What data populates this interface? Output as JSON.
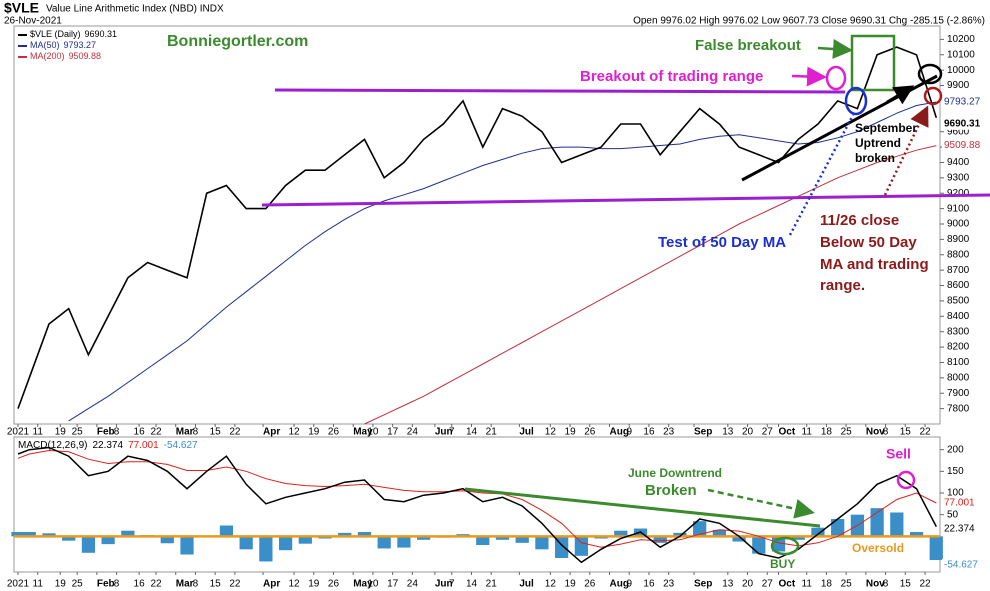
{
  "chart_data": {
    "type": "line",
    "symbol": "$VLE",
    "title": "Value Line Arithmetic Index (NBD) INDX",
    "date_label": "26-Nov-2021",
    "header_quote": "Open 9976.02 High 9976.02 Low 9607.73 Close 9690.31 Chg -285.15 (-2.86%)",
    "x": [
      "2021-01-04",
      "2021-01-08",
      "2021-01-15",
      "2021-01-22",
      "2021-01-29",
      "2021-02-05",
      "2021-02-12",
      "2021-02-19",
      "2021-02-26",
      "2021-03-05",
      "2021-03-12",
      "2021-03-19",
      "2021-03-26",
      "2021-04-02",
      "2021-04-09",
      "2021-04-16",
      "2021-04-23",
      "2021-04-30",
      "2021-05-07",
      "2021-05-14",
      "2021-05-21",
      "2021-05-28",
      "2021-06-04",
      "2021-06-11",
      "2021-06-18",
      "2021-06-25",
      "2021-07-02",
      "2021-07-09",
      "2021-07-16",
      "2021-07-23",
      "2021-07-30",
      "2021-08-06",
      "2021-08-13",
      "2021-08-20",
      "2021-08-27",
      "2021-09-03",
      "2021-09-10",
      "2021-09-17",
      "2021-09-24",
      "2021-10-01",
      "2021-10-08",
      "2021-10-15",
      "2021-10-22",
      "2021-10-29",
      "2021-11-05",
      "2021-11-12",
      "2021-11-19",
      "2021-11-26"
    ],
    "series": [
      {
        "name": "$VLE (Daily)",
        "color": "#000000",
        "values": [
          7800,
          8000,
          8350,
          8450,
          8150,
          8400,
          8650,
          8750,
          8700,
          8650,
          9200,
          9250,
          9100,
          9100,
          9250,
          9350,
          9350,
          9450,
          9550,
          9300,
          9400,
          9550,
          9650,
          9800,
          9500,
          9750,
          9700,
          9600,
          9400,
          9450,
          9500,
          9650,
          9650,
          9450,
          9600,
          9750,
          9650,
          9500,
          9450,
          9400,
          9550,
          9650,
          9800,
          9750,
          10100,
          10150,
          10100,
          9690.31
        ]
      },
      {
        "name": "MA(50)",
        "color": "#1f2f8f",
        "values": [
          null,
          null,
          null,
          7720,
          7800,
          7880,
          7970,
          8060,
          8150,
          8240,
          8350,
          8460,
          8560,
          8660,
          8760,
          8860,
          8950,
          9030,
          9100,
          9150,
          9190,
          9230,
          9280,
          9330,
          9380,
          9420,
          9460,
          9490,
          9500,
          9500,
          9490,
          9490,
          9500,
          9510,
          9520,
          9550,
          9570,
          9580,
          9560,
          9540,
          9520,
          9530,
          9560,
          9600,
          9660,
          9720,
          9770,
          9793.27
        ]
      },
      {
        "name": "MA(200)",
        "color": "#c0303f",
        "values": [
          null,
          null,
          null,
          null,
          null,
          null,
          null,
          null,
          null,
          null,
          null,
          null,
          null,
          null,
          null,
          null,
          null,
          null,
          7700,
          7760,
          7820,
          7880,
          7950,
          8020,
          8090,
          8160,
          8230,
          8300,
          8370,
          8440,
          8510,
          8580,
          8650,
          8720,
          8790,
          8860,
          8930,
          9000,
          9060,
          9120,
          9180,
          9240,
          9300,
          9350,
          9400,
          9440,
          9480,
          9509.88
        ]
      }
    ],
    "ylim": [
      7700,
      10300
    ],
    "yticks": [
      7800,
      7900,
      8000,
      8100,
      8200,
      8300,
      8400,
      8500,
      8600,
      8700,
      8800,
      8900,
      9000,
      9100,
      9200,
      9300,
      9400,
      9500,
      9600,
      9900,
      10000,
      10100,
      10200
    ],
    "xlim": [
      "2021-01-04",
      "2021-11-22"
    ],
    "xticks": [
      {
        "value": "2021-01-04",
        "label": "2021"
      },
      {
        "value": "2021-01-11",
        "label": "11"
      },
      {
        "value": "2021-01-19",
        "label": "19"
      },
      {
        "value": "2021-01-25",
        "label": "25"
      },
      {
        "value": "2021-02-01",
        "label": "Feb"
      },
      {
        "value": "2021-02-08",
        "label": "8"
      },
      {
        "value": "2021-02-16",
        "label": "16"
      },
      {
        "value": "2021-02-22",
        "label": "22"
      },
      {
        "value": "2021-03-01",
        "label": "Mar"
      },
      {
        "value": "2021-03-08",
        "label": "8"
      },
      {
        "value": "2021-03-15",
        "label": "15"
      },
      {
        "value": "2021-03-22",
        "label": "22"
      },
      {
        "value": "2021-04-01",
        "label": "Apr"
      },
      {
        "value": "2021-04-12",
        "label": "12"
      },
      {
        "value": "2021-04-19",
        "label": "19"
      },
      {
        "value": "2021-04-26",
        "label": "26"
      },
      {
        "value": "2021-05-03",
        "label": "May"
      },
      {
        "value": "2021-05-10",
        "label": "10"
      },
      {
        "value": "2021-05-17",
        "label": "17"
      },
      {
        "value": "2021-05-24",
        "label": "24"
      },
      {
        "value": "2021-06-01",
        "label": "Jun"
      },
      {
        "value": "2021-06-07",
        "label": "7"
      },
      {
        "value": "2021-06-14",
        "label": "14"
      },
      {
        "value": "2021-06-21",
        "label": "21"
      },
      {
        "value": "2021-07-01",
        "label": "Jul"
      },
      {
        "value": "2021-07-12",
        "label": "12"
      },
      {
        "value": "2021-07-19",
        "label": "19"
      },
      {
        "value": "2021-07-26",
        "label": "26"
      },
      {
        "value": "2021-08-02",
        "label": "Aug"
      },
      {
        "value": "2021-08-09",
        "label": "9"
      },
      {
        "value": "2021-08-16",
        "label": "16"
      },
      {
        "value": "2021-08-23",
        "label": "23"
      },
      {
        "value": "2021-09-01",
        "label": "Sep"
      },
      {
        "value": "2021-09-13",
        "label": "13"
      },
      {
        "value": "2021-09-20",
        "label": "20"
      },
      {
        "value": "2021-09-27",
        "label": "27"
      },
      {
        "value": "2021-10-01",
        "label": "Oct"
      },
      {
        "value": "2021-10-11",
        "label": "11"
      },
      {
        "value": "2021-10-18",
        "label": "18"
      },
      {
        "value": "2021-10-25",
        "label": "25"
      },
      {
        "value": "2021-11-01",
        "label": "Nov"
      },
      {
        "value": "2021-11-08",
        "label": "8"
      },
      {
        "value": "2021-11-15",
        "label": "15"
      },
      {
        "value": "2021-11-22",
        "label": "22"
      }
    ],
    "grid": false,
    "macd": {
      "name": "MACD(12,26,9)",
      "ylim": [
        -80,
        220
      ],
      "yticks": [
        50,
        100,
        150,
        200
      ],
      "macd": {
        "color": "#000000",
        "values": [
          190,
          200,
          205,
          185,
          140,
          150,
          185,
          175,
          150,
          110,
          150,
          185,
          120,
          75,
          90,
          100,
          110,
          125,
          130,
          85,
          80,
          95,
          100,
          110,
          80,
          90,
          70,
          30,
          -20,
          -60,
          -30,
          -5,
          10,
          -25,
          0,
          40,
          30,
          0,
          -40,
          -50,
          -30,
          5,
          40,
          75,
          120,
          140,
          110,
          22.374
        ]
      },
      "signal": {
        "color": "#e0201b",
        "values": [
          180,
          190,
          198,
          195,
          178,
          168,
          172,
          172,
          166,
          152,
          152,
          160,
          150,
          133,
          122,
          117,
          115,
          117,
          120,
          113,
          106,
          103,
          103,
          105,
          100,
          98,
          85,
          60,
          30,
          -15,
          -25,
          -18,
          -8,
          -10,
          -8,
          5,
          15,
          12,
          0,
          -15,
          -22,
          -15,
          0,
          25,
          55,
          85,
          100,
          77.001
        ]
      },
      "histogram": {
        "color": "#3a8fc8",
        "values": [
          10,
          10,
          7,
          -10,
          -38,
          -18,
          13,
          3,
          -16,
          -42,
          -2,
          25,
          -30,
          -58,
          -32,
          -17,
          -5,
          8,
          10,
          -28,
          -26,
          -8,
          -3,
          5,
          -20,
          -8,
          -15,
          -30,
          -50,
          -45,
          -5,
          13,
          18,
          -15,
          8,
          35,
          15,
          -12,
          -40,
          -35,
          -8,
          20,
          40,
          50,
          65,
          55,
          10,
          -54.627
        ]
      }
    },
    "annotations": {
      "site": "Bonniegortler.com",
      "false_breakout": "False breakout",
      "breakout": "Breakout of trading range",
      "uptrend_broken": [
        "September",
        "Uptrend",
        "broken"
      ],
      "test_ma": "Test of 50 Day MA",
      "close_note": [
        "11/26 close",
        "Below 50 Day",
        "MA and trading",
        "range."
      ],
      "june_downtrend": [
        "June Downtrend",
        "Broken"
      ],
      "sell": "Sell",
      "buy": "BUY",
      "oversold": "Oversold"
    }
  }
}
